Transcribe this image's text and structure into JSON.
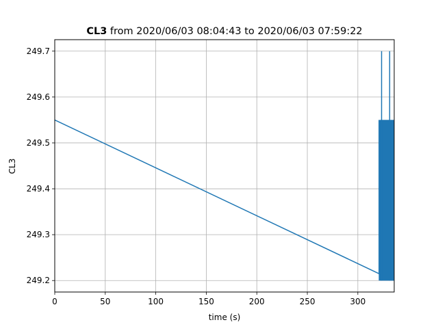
{
  "chart_data": {
    "type": "line",
    "title": {
      "bold_part": "CL3",
      "rest": " from 2020/06/03 08:04:43 to 2020/06/03 07:59:22"
    },
    "xlabel": "time (s)",
    "ylabel": "CL3",
    "xlim": [
      0,
      336
    ],
    "ylim": [
      249.175,
      249.725
    ],
    "x_ticks": [
      0,
      50,
      100,
      150,
      200,
      250,
      300
    ],
    "x_tick_labels": [
      "0",
      "50",
      "100",
      "150",
      "200",
      "250",
      "300"
    ],
    "y_ticks": [
      249.2,
      249.3,
      249.4,
      249.5,
      249.6,
      249.7
    ],
    "y_tick_labels": [
      "249.2",
      "249.3",
      "249.4",
      "249.5",
      "249.6",
      "249.7"
    ],
    "grid": true,
    "series": [
      {
        "color": "#1f77b4",
        "trend": {
          "x": [
            0,
            321
          ],
          "y": [
            249.55,
            249.215
          ]
        },
        "oscillation": {
          "x_start": 321,
          "x_end": 336,
          "low": 249.2,
          "high": 249.55,
          "spikes": [
            {
              "x": 323.5,
              "y": 249.7
            },
            {
              "x": 331.5,
              "y": 249.7
            }
          ]
        }
      }
    ]
  }
}
